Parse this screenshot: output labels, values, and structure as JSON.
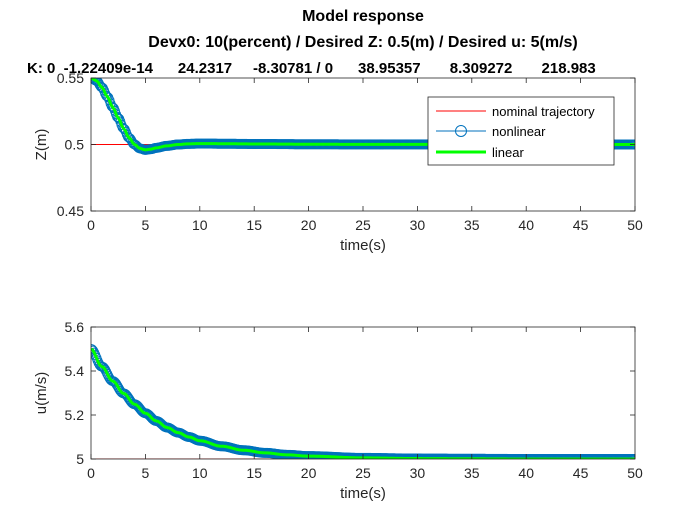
{
  "figure": {
    "title": "Model response",
    "subtitle": "Devx0: 10(percent) / Desired Z: 0.5(m) / Desired u: 5(m/s)",
    "gains_line": "K: 0  -1.22409e-14      24.2317     -8.30781 / 0      38.95357       8.309272       218.983"
  },
  "colors": {
    "nominal": "#ff0000",
    "nonlinear": "#0072bd",
    "linear": "#00ff00",
    "axes": "#262626"
  },
  "chart_data": [
    {
      "type": "line",
      "xlabel": "time(s)",
      "ylabel": "Z(m)",
      "xlim": [
        0,
        50
      ],
      "ylim": [
        0.45,
        0.55
      ],
      "xticks": [
        0,
        5,
        10,
        15,
        20,
        25,
        30,
        35,
        40,
        45,
        50
      ],
      "yticks": [
        0.45,
        0.5,
        0.55
      ],
      "ytick_labels": [
        "0.45",
        "0.5",
        "0.55"
      ],
      "grid": false,
      "legend_position": "top-right",
      "series": [
        {
          "name": "nominal trajectory",
          "style": "line",
          "x": [
            0,
            50
          ],
          "y": [
            0.5,
            0.5
          ]
        },
        {
          "name": "nonlinear",
          "style": "marker-circle",
          "x": [
            0,
            0.5,
            1,
            1.5,
            2,
            2.5,
            3,
            3.5,
            4,
            4.5,
            5,
            5.5,
            6,
            7,
            8,
            9,
            10,
            12,
            15,
            20,
            25,
            30,
            35,
            40,
            45,
            50
          ],
          "y": [
            0.55,
            0.548,
            0.543,
            0.536,
            0.528,
            0.52,
            0.512,
            0.505,
            0.5,
            0.497,
            0.496,
            0.4965,
            0.4975,
            0.499,
            0.5,
            0.5005,
            0.5007,
            0.5006,
            0.5004,
            0.5002,
            0.5001,
            0.5001,
            0.5,
            0.5,
            0.5,
            0.5
          ]
        },
        {
          "name": "linear",
          "style": "thick-line",
          "x": [
            0,
            0.5,
            1,
            1.5,
            2,
            2.5,
            3,
            3.5,
            4,
            4.5,
            5,
            5.5,
            6,
            7,
            8,
            9,
            10,
            12,
            15,
            20,
            25,
            30,
            35,
            40,
            45,
            50
          ],
          "y": [
            0.55,
            0.548,
            0.543,
            0.536,
            0.528,
            0.52,
            0.512,
            0.505,
            0.5,
            0.497,
            0.496,
            0.4965,
            0.4975,
            0.499,
            0.5,
            0.5005,
            0.5007,
            0.5006,
            0.5004,
            0.5002,
            0.5001,
            0.5001,
            0.5,
            0.5,
            0.5,
            0.5
          ]
        }
      ]
    },
    {
      "type": "line",
      "xlabel": "time(s)",
      "ylabel": "u(m/s)",
      "xlim": [
        0,
        50
      ],
      "ylim": [
        5,
        5.6
      ],
      "xticks": [
        0,
        5,
        10,
        15,
        20,
        25,
        30,
        35,
        40,
        45,
        50
      ],
      "yticks": [
        5,
        5.2,
        5.4,
        5.6
      ],
      "ytick_labels": [
        "5",
        "5.2",
        "5.4",
        "5.6"
      ],
      "grid": false,
      "series": [
        {
          "name": "nominal trajectory",
          "style": "line",
          "x": [
            0,
            50
          ],
          "y": [
            5,
            5
          ]
        },
        {
          "name": "nonlinear",
          "style": "marker-circle",
          "x": [
            0,
            1,
            2,
            3,
            4,
            5,
            6,
            7,
            8,
            9,
            10,
            12,
            14,
            16,
            18,
            20,
            25,
            30,
            35,
            40,
            45,
            50
          ],
          "y": [
            5.5,
            5.42,
            5.354,
            5.298,
            5.249,
            5.208,
            5.173,
            5.143,
            5.12,
            5.1,
            5.083,
            5.058,
            5.04,
            5.028,
            5.019,
            5.013,
            5.005,
            5.002,
            5.001,
            5.0,
            5.0,
            5.0
          ]
        },
        {
          "name": "linear",
          "style": "thick-line",
          "x": [
            0,
            1,
            2,
            3,
            4,
            5,
            6,
            7,
            8,
            9,
            10,
            12,
            14,
            16,
            18,
            20,
            25,
            30,
            35,
            40,
            45,
            50
          ],
          "y": [
            5.5,
            5.42,
            5.354,
            5.298,
            5.249,
            5.208,
            5.173,
            5.143,
            5.12,
            5.1,
            5.083,
            5.058,
            5.04,
            5.028,
            5.019,
            5.013,
            5.005,
            5.002,
            5.001,
            5.0,
            5.0,
            5.0
          ]
        }
      ]
    }
  ]
}
